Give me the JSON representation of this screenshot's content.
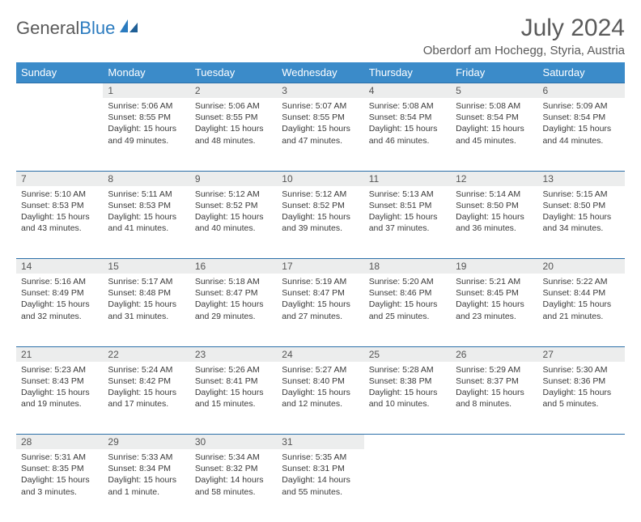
{
  "brand": {
    "part1": "General",
    "part2": "Blue"
  },
  "title": "July 2024",
  "location": "Oberdorf am Hochegg, Styria, Austria",
  "colors": {
    "header_bg": "#3b8bc9",
    "header_text": "#ffffff",
    "daynum_bg": "#eceded",
    "row_border": "#2b6fa8",
    "body_text": "#3a3a3a",
    "brand_gray": "#5a5a5a",
    "brand_blue": "#2b7bbf"
  },
  "weekdays": [
    "Sunday",
    "Monday",
    "Tuesday",
    "Wednesday",
    "Thursday",
    "Friday",
    "Saturday"
  ],
  "weeks": [
    {
      "nums": [
        "",
        "1",
        "2",
        "3",
        "4",
        "5",
        "6"
      ],
      "cells": [
        null,
        {
          "sr": "Sunrise: 5:06 AM",
          "ss": "Sunset: 8:55 PM",
          "dl": "Daylight: 15 hours and 49 minutes."
        },
        {
          "sr": "Sunrise: 5:06 AM",
          "ss": "Sunset: 8:55 PM",
          "dl": "Daylight: 15 hours and 48 minutes."
        },
        {
          "sr": "Sunrise: 5:07 AM",
          "ss": "Sunset: 8:55 PM",
          "dl": "Daylight: 15 hours and 47 minutes."
        },
        {
          "sr": "Sunrise: 5:08 AM",
          "ss": "Sunset: 8:54 PM",
          "dl": "Daylight: 15 hours and 46 minutes."
        },
        {
          "sr": "Sunrise: 5:08 AM",
          "ss": "Sunset: 8:54 PM",
          "dl": "Daylight: 15 hours and 45 minutes."
        },
        {
          "sr": "Sunrise: 5:09 AM",
          "ss": "Sunset: 8:54 PM",
          "dl": "Daylight: 15 hours and 44 minutes."
        }
      ]
    },
    {
      "nums": [
        "7",
        "8",
        "9",
        "10",
        "11",
        "12",
        "13"
      ],
      "cells": [
        {
          "sr": "Sunrise: 5:10 AM",
          "ss": "Sunset: 8:53 PM",
          "dl": "Daylight: 15 hours and 43 minutes."
        },
        {
          "sr": "Sunrise: 5:11 AM",
          "ss": "Sunset: 8:53 PM",
          "dl": "Daylight: 15 hours and 41 minutes."
        },
        {
          "sr": "Sunrise: 5:12 AM",
          "ss": "Sunset: 8:52 PM",
          "dl": "Daylight: 15 hours and 40 minutes."
        },
        {
          "sr": "Sunrise: 5:12 AM",
          "ss": "Sunset: 8:52 PM",
          "dl": "Daylight: 15 hours and 39 minutes."
        },
        {
          "sr": "Sunrise: 5:13 AM",
          "ss": "Sunset: 8:51 PM",
          "dl": "Daylight: 15 hours and 37 minutes."
        },
        {
          "sr": "Sunrise: 5:14 AM",
          "ss": "Sunset: 8:50 PM",
          "dl": "Daylight: 15 hours and 36 minutes."
        },
        {
          "sr": "Sunrise: 5:15 AM",
          "ss": "Sunset: 8:50 PM",
          "dl": "Daylight: 15 hours and 34 minutes."
        }
      ]
    },
    {
      "nums": [
        "14",
        "15",
        "16",
        "17",
        "18",
        "19",
        "20"
      ],
      "cells": [
        {
          "sr": "Sunrise: 5:16 AM",
          "ss": "Sunset: 8:49 PM",
          "dl": "Daylight: 15 hours and 32 minutes."
        },
        {
          "sr": "Sunrise: 5:17 AM",
          "ss": "Sunset: 8:48 PM",
          "dl": "Daylight: 15 hours and 31 minutes."
        },
        {
          "sr": "Sunrise: 5:18 AM",
          "ss": "Sunset: 8:47 PM",
          "dl": "Daylight: 15 hours and 29 minutes."
        },
        {
          "sr": "Sunrise: 5:19 AM",
          "ss": "Sunset: 8:47 PM",
          "dl": "Daylight: 15 hours and 27 minutes."
        },
        {
          "sr": "Sunrise: 5:20 AM",
          "ss": "Sunset: 8:46 PM",
          "dl": "Daylight: 15 hours and 25 minutes."
        },
        {
          "sr": "Sunrise: 5:21 AM",
          "ss": "Sunset: 8:45 PM",
          "dl": "Daylight: 15 hours and 23 minutes."
        },
        {
          "sr": "Sunrise: 5:22 AM",
          "ss": "Sunset: 8:44 PM",
          "dl": "Daylight: 15 hours and 21 minutes."
        }
      ]
    },
    {
      "nums": [
        "21",
        "22",
        "23",
        "24",
        "25",
        "26",
        "27"
      ],
      "cells": [
        {
          "sr": "Sunrise: 5:23 AM",
          "ss": "Sunset: 8:43 PM",
          "dl": "Daylight: 15 hours and 19 minutes."
        },
        {
          "sr": "Sunrise: 5:24 AM",
          "ss": "Sunset: 8:42 PM",
          "dl": "Daylight: 15 hours and 17 minutes."
        },
        {
          "sr": "Sunrise: 5:26 AM",
          "ss": "Sunset: 8:41 PM",
          "dl": "Daylight: 15 hours and 15 minutes."
        },
        {
          "sr": "Sunrise: 5:27 AM",
          "ss": "Sunset: 8:40 PM",
          "dl": "Daylight: 15 hours and 12 minutes."
        },
        {
          "sr": "Sunrise: 5:28 AM",
          "ss": "Sunset: 8:38 PM",
          "dl": "Daylight: 15 hours and 10 minutes."
        },
        {
          "sr": "Sunrise: 5:29 AM",
          "ss": "Sunset: 8:37 PM",
          "dl": "Daylight: 15 hours and 8 minutes."
        },
        {
          "sr": "Sunrise: 5:30 AM",
          "ss": "Sunset: 8:36 PM",
          "dl": "Daylight: 15 hours and 5 minutes."
        }
      ]
    },
    {
      "nums": [
        "28",
        "29",
        "30",
        "31",
        "",
        "",
        ""
      ],
      "cells": [
        {
          "sr": "Sunrise: 5:31 AM",
          "ss": "Sunset: 8:35 PM",
          "dl": "Daylight: 15 hours and 3 minutes."
        },
        {
          "sr": "Sunrise: 5:33 AM",
          "ss": "Sunset: 8:34 PM",
          "dl": "Daylight: 15 hours and 1 minute."
        },
        {
          "sr": "Sunrise: 5:34 AM",
          "ss": "Sunset: 8:32 PM",
          "dl": "Daylight: 14 hours and 58 minutes."
        },
        {
          "sr": "Sunrise: 5:35 AM",
          "ss": "Sunset: 8:31 PM",
          "dl": "Daylight: 14 hours and 55 minutes."
        },
        null,
        null,
        null
      ]
    }
  ]
}
